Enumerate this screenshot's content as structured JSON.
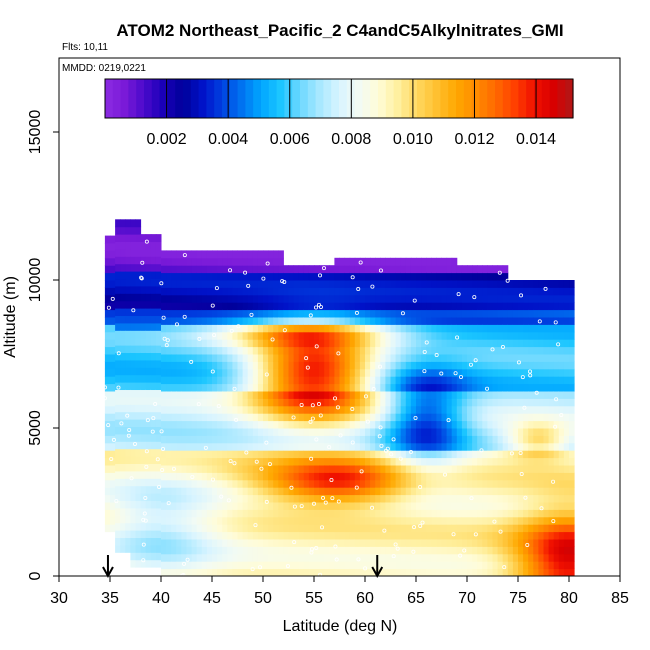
{
  "chart_data": {
    "type": "heatmap",
    "title": "ATOM2 Northeast_Pacific_2 C4andC5Alkylnitrates_GMI",
    "flights_label": "Flts: 10,11",
    "dates_label": "MMDD: 0219,0221",
    "xlabel": "Latitude (deg N)",
    "ylabel": "Altitude (m)",
    "xlim": [
      30,
      85
    ],
    "ylim": [
      0,
      17500
    ],
    "x_ticks": [
      "30",
      "35",
      "40",
      "45",
      "50",
      "55",
      "60",
      "65",
      "70",
      "75",
      "80",
      "85"
    ],
    "x_tick_values": [
      30,
      35,
      40,
      45,
      50,
      55,
      60,
      65,
      70,
      75,
      80,
      85
    ],
    "y_ticks": [
      "0",
      "5000",
      "10000",
      "15000"
    ],
    "y_tick_values": [
      0,
      5000,
      10000,
      15000
    ],
    "colorbar": {
      "range": [
        0,
        0.0152
      ],
      "tick_labels": [
        "0.002",
        "0.004",
        "0.006",
        "0.008",
        "0.010",
        "0.012",
        "0.014"
      ],
      "tick_values": [
        0.002,
        0.004,
        0.006,
        0.008,
        0.01,
        0.012,
        0.014
      ],
      "colors": [
        "#8b2be2",
        "#7a1ad8",
        "#4a0acb",
        "#1a00b8",
        "#00009a",
        "#0012c8",
        "#0040e0",
        "#0072f0",
        "#00a6ff",
        "#1cc6ff",
        "#6cd8ff",
        "#a8e8ff",
        "#d8f4ff",
        "#f2fbf4",
        "#fffcd8",
        "#fff0a0",
        "#ffd860",
        "#ffc030",
        "#ffa800",
        "#ff8c00",
        "#ff6a00",
        "#ff4000",
        "#f01000",
        "#d80000",
        "#b01818"
      ]
    },
    "value_ramp_note": "",
    "altitude_levels": [
      0,
      500,
      1000,
      1500,
      2000,
      2500,
      3000,
      3500,
      4000,
      4500,
      5000,
      5500,
      6000,
      6500,
      7000,
      7500,
      8000,
      8500,
      9000,
      9500,
      10000,
      10500,
      11000,
      11500,
      12000
    ],
    "latitude_range": [
      34.5,
      80.5
    ],
    "arrows_at_latitude": [
      34.8,
      61.2
    ]
  }
}
